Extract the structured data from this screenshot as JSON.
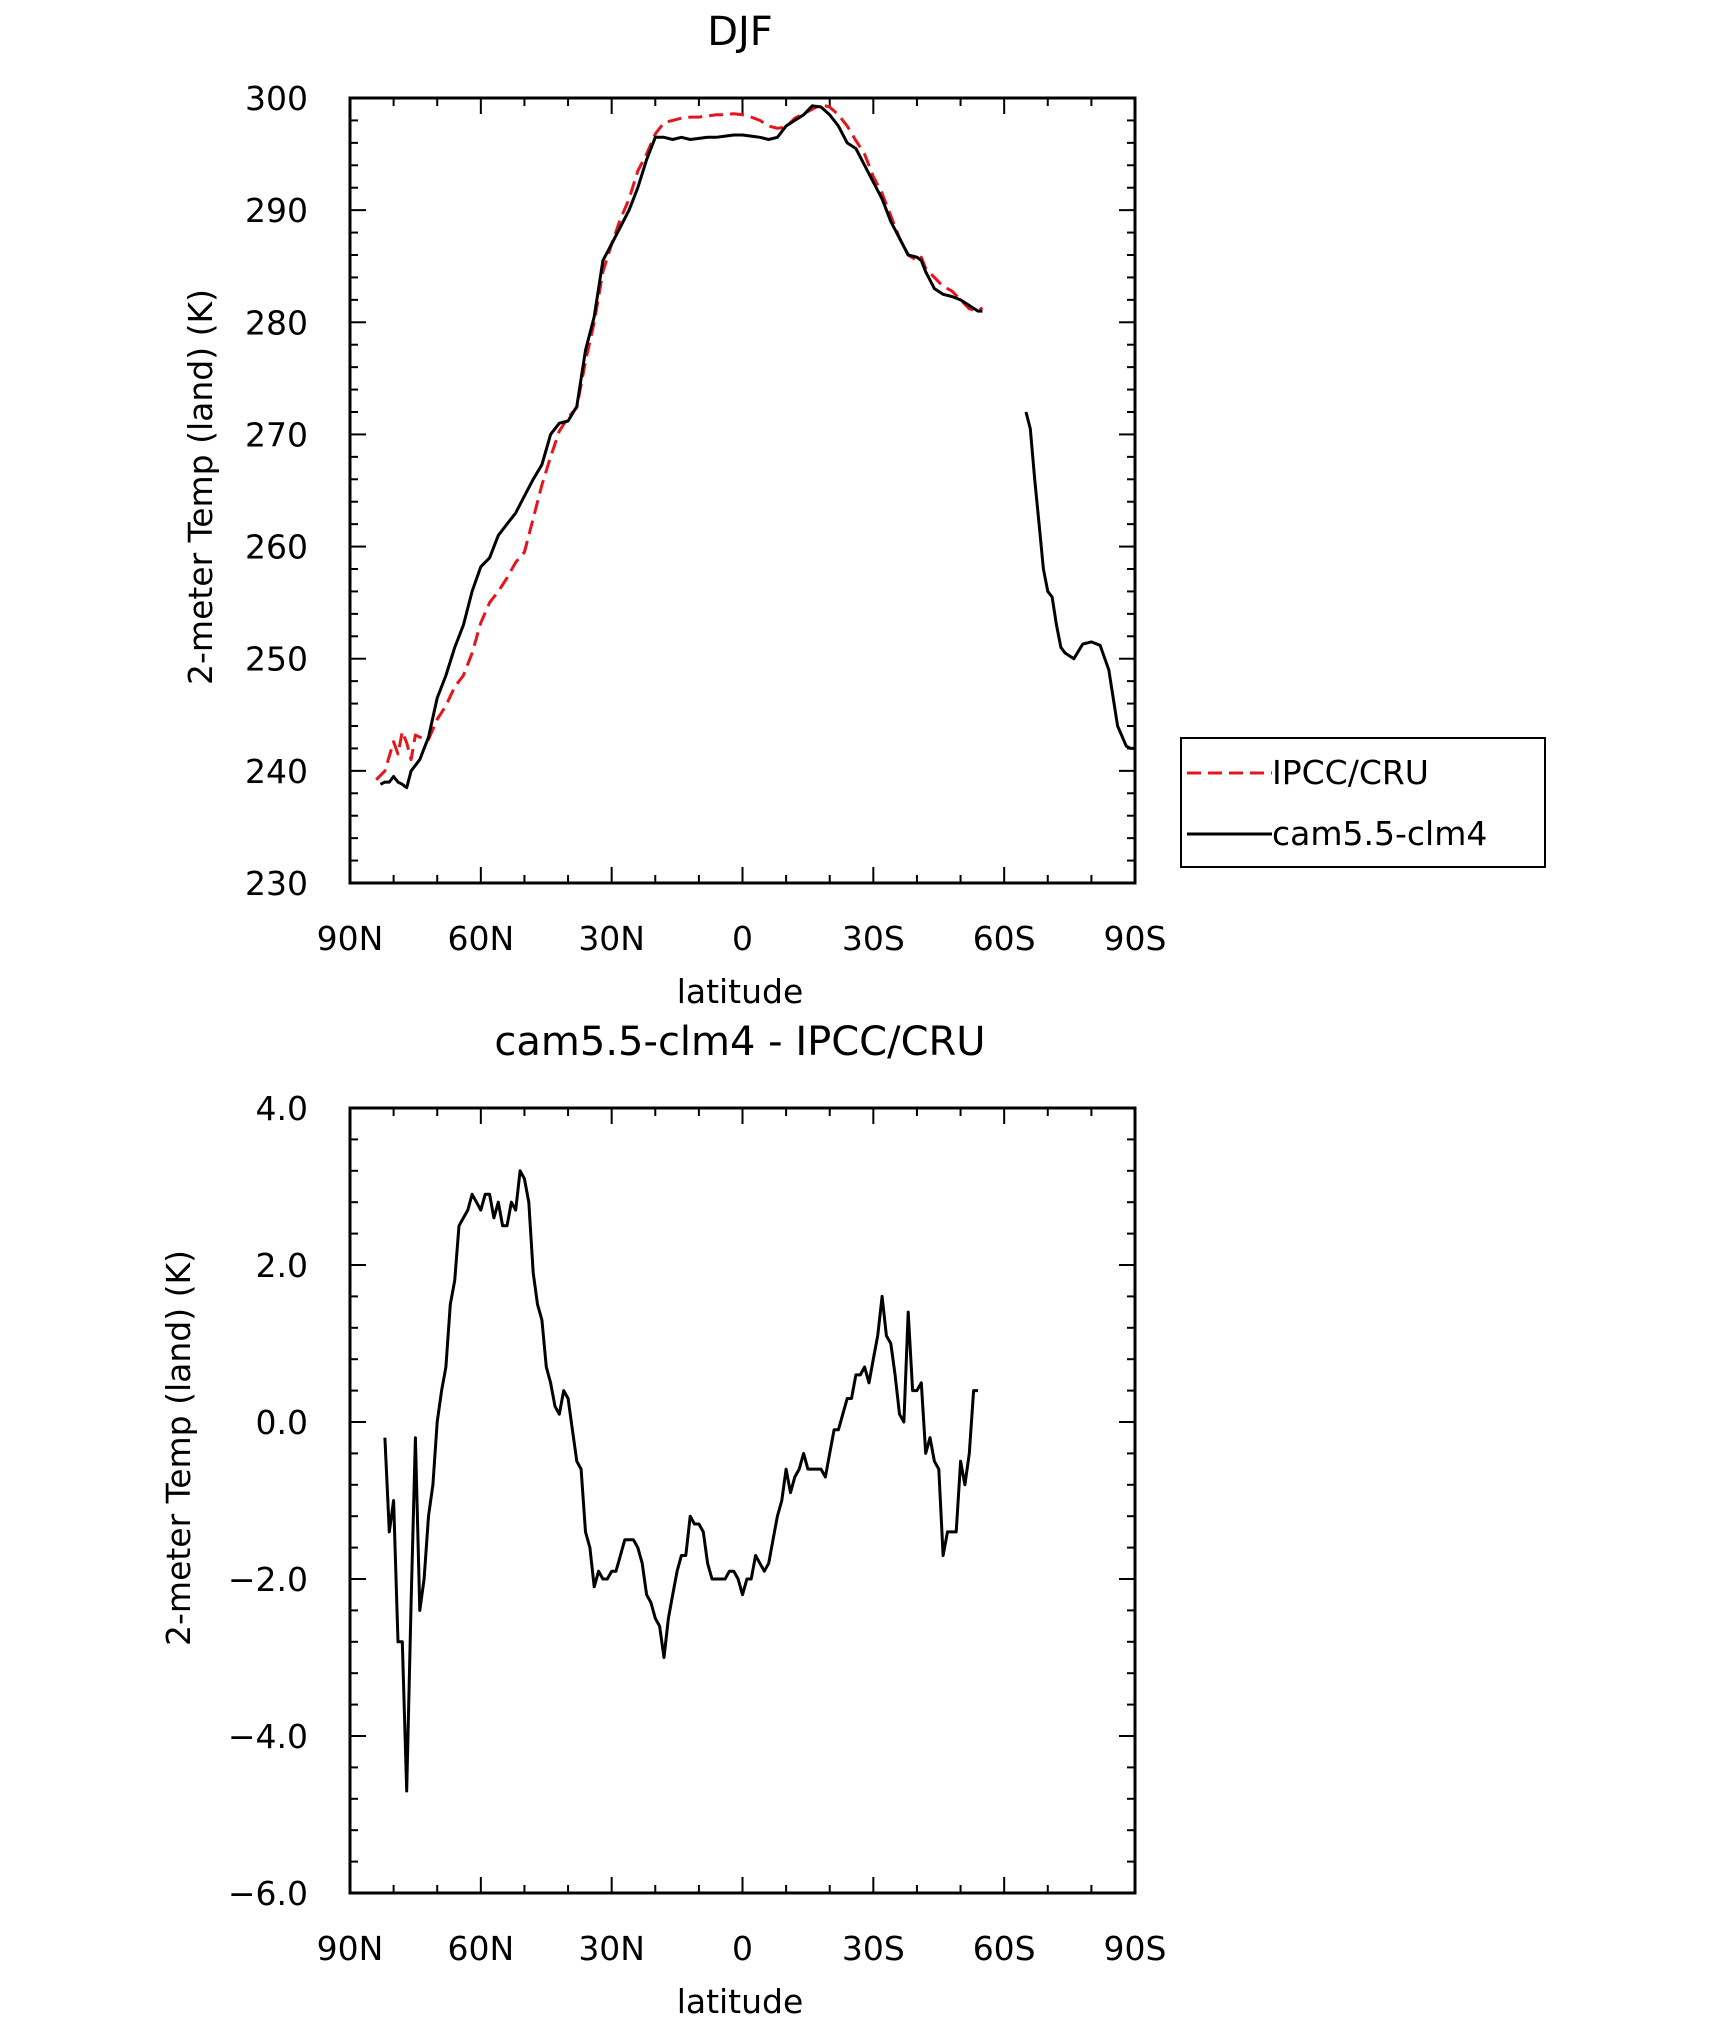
{
  "chart_data": [
    {
      "type": "line",
      "title": "DJF",
      "xlabel": "latitude",
      "ylabel": "2-meter Temp (land) (K)",
      "xlim": [
        90,
        -90
      ],
      "ylim": [
        230,
        300
      ],
      "x_ticks": [
        90,
        60,
        30,
        0,
        -30,
        -60,
        -90
      ],
      "x_tick_labels": [
        "90N",
        "60N",
        "30N",
        "0",
        "30S",
        "60S",
        "90S"
      ],
      "y_ticks": [
        230,
        240,
        250,
        260,
        270,
        280,
        290,
        300
      ],
      "y_tick_labels": [
        "230",
        "240",
        "250",
        "260",
        "270",
        "280",
        "290",
        "300"
      ],
      "legend_position": "right",
      "series": [
        {
          "name": "IPCC/CRU",
          "color": "#e8141b",
          "dash": "dashed",
          "x": [
            84,
            82,
            80,
            79,
            78,
            77,
            76,
            75,
            74,
            72,
            70,
            68,
            66,
            64,
            62,
            60,
            58,
            56,
            54,
            52,
            50,
            48,
            46,
            44,
            42,
            40,
            38,
            36,
            34,
            32,
            30,
            28,
            26,
            24,
            22,
            20,
            18,
            16,
            14,
            12,
            10,
            8,
            6,
            4,
            2,
            0,
            -2,
            -4,
            -6,
            -8,
            -10,
            -12,
            -14,
            -16,
            -18,
            -20,
            -22,
            -24,
            -26,
            -28,
            -30,
            -32,
            -34,
            -36,
            -38,
            -40,
            -41,
            -42,
            -44,
            -46,
            -48,
            -50,
            -52,
            -54,
            -55
          ],
          "y": [
            239.2,
            240.0,
            242.6,
            241.5,
            243.5,
            242.5,
            241.0,
            243.2,
            243.0,
            242.8,
            244.6,
            245.8,
            247.5,
            248.5,
            250.5,
            253.2,
            255.0,
            256.0,
            257.2,
            258.6,
            259.5,
            262.5,
            265.5,
            268.0,
            270.3,
            271.5,
            272.4,
            276.5,
            280.0,
            284.5,
            287.0,
            289.2,
            291.0,
            293.5,
            295.0,
            296.8,
            297.8,
            298.0,
            298.2,
            298.3,
            298.3,
            298.4,
            298.5,
            298.5,
            298.6,
            298.5,
            298.3,
            298.0,
            297.5,
            297.3,
            297.4,
            298.2,
            298.6,
            299.0,
            299.4,
            299.2,
            298.5,
            297.5,
            296.2,
            295.0,
            293.0,
            291.5,
            289.5,
            287.5,
            286.0,
            285.5,
            285.8,
            284.8,
            284.0,
            283.2,
            282.8,
            282.0,
            281.2,
            281.0,
            281.3
          ]
        },
        {
          "name": "cam5.5-clm4",
          "color": "#000000",
          "dash": "solid",
          "x": [
            83,
            82,
            81,
            80,
            79,
            78,
            77,
            76,
            74,
            72,
            70,
            68,
            66,
            64,
            62,
            60,
            58,
            56,
            54,
            52,
            50,
            48,
            46,
            44,
            42,
            40,
            38,
            36,
            34,
            32,
            30,
            28,
            26,
            24,
            22,
            20,
            18,
            16,
            14,
            12,
            10,
            8,
            6,
            4,
            2,
            0,
            -2,
            -4,
            -6,
            -8,
            -10,
            -12,
            -14,
            -16,
            -18,
            -20,
            -22,
            -24,
            -26,
            -28,
            -30,
            -32,
            -34,
            -36,
            -38,
            -40,
            -41,
            -42,
            -44,
            -46,
            -48,
            -50,
            -52,
            -54,
            -55,
            null,
            -65,
            -66,
            -67,
            -68,
            -69,
            -70,
            -71,
            -72,
            -73,
            -74,
            -76,
            -78,
            -80,
            -82,
            -84,
            -86,
            -88,
            -89,
            -90
          ],
          "y": [
            238.8,
            239.0,
            239.0,
            239.5,
            239.0,
            238.8,
            238.5,
            240.0,
            241.0,
            243.0,
            246.5,
            248.5,
            251.0,
            253.0,
            256.0,
            258.2,
            259.0,
            261.0,
            262.0,
            263.0,
            264.5,
            266.0,
            267.3,
            270.0,
            271.0,
            271.2,
            272.5,
            277.5,
            280.5,
            285.5,
            287.0,
            288.5,
            290.0,
            292.0,
            294.5,
            296.5,
            296.5,
            296.3,
            296.5,
            296.3,
            296.4,
            296.5,
            296.5,
            296.6,
            296.7,
            296.7,
            296.6,
            296.5,
            296.3,
            296.5,
            297.5,
            298.0,
            298.5,
            299.3,
            299.2,
            298.5,
            297.5,
            296.0,
            295.5,
            294.0,
            292.5,
            291.0,
            289.0,
            287.5,
            286.0,
            285.8,
            285.5,
            284.5,
            283.0,
            282.5,
            282.3,
            282.0,
            281.5,
            281.0,
            281.0,
            null,
            272.0,
            270.5,
            266.0,
            262.0,
            258.0,
            256.0,
            255.5,
            253.0,
            251.0,
            250.5,
            250.0,
            251.3,
            251.5,
            251.2,
            249.0,
            244.0,
            242.2,
            242.0,
            242.0
          ]
        }
      ]
    },
    {
      "type": "line",
      "title": "cam5.5-clm4 - IPCC/CRU",
      "xlabel": "latitude",
      "ylabel": "2-meter Temp (land) (K)",
      "xlim": [
        90,
        -90
      ],
      "ylim": [
        -6.0,
        4.0
      ],
      "x_ticks": [
        90,
        60,
        30,
        0,
        -30,
        -60,
        -90
      ],
      "x_tick_labels": [
        "90N",
        "60N",
        "30N",
        "0",
        "30S",
        "60S",
        "90S"
      ],
      "y_ticks": [
        -6.0,
        -4.0,
        -2.0,
        0.0,
        2.0,
        4.0
      ],
      "y_tick_labels": [
        "-6.0",
        "-4.0",
        "-2.0",
        "0.0",
        "2.0",
        "4.0"
      ],
      "series": [
        {
          "name": "cam5.5-clm4",
          "color": "#000000",
          "dash": "solid",
          "x": [
            82,
            81,
            80,
            79,
            78,
            77,
            76,
            75,
            74,
            73,
            72,
            71,
            70,
            69,
            68,
            67,
            66,
            65,
            64,
            63,
            62,
            61,
            60,
            59,
            58,
            57,
            56,
            55,
            54,
            53,
            52,
            51,
            50,
            49,
            48,
            47,
            46,
            45,
            44,
            43,
            42,
            41,
            40,
            39,
            38,
            37,
            36,
            35,
            34,
            33,
            32,
            31,
            30,
            29,
            28,
            27,
            26,
            25,
            24,
            23,
            22,
            21,
            20,
            19,
            18,
            17,
            16,
            15,
            14,
            13,
            12,
            11,
            10,
            9,
            8,
            7,
            6,
            5,
            4,
            3,
            2,
            1,
            0,
            -1,
            -2,
            -3,
            -4,
            -5,
            -6,
            -7,
            -8,
            -9,
            -10,
            -11,
            -12,
            -13,
            -14,
            -15,
            -16,
            -17,
            -18,
            -19,
            -20,
            -21,
            -22,
            -23,
            -24,
            -25,
            -26,
            -27,
            -28,
            -29,
            -30,
            -31,
            -32,
            -33,
            -34,
            -35,
            -36,
            -37,
            -38,
            -39,
            -40,
            -41,
            -42,
            -43,
            -44,
            -45,
            -46,
            -47,
            -48,
            -49,
            -50,
            -51,
            -52,
            -53,
            -54
          ],
          "y": [
            -0.2,
            -1.4,
            -1.0,
            -2.8,
            -2.8,
            -4.7,
            -2.3,
            -0.2,
            -2.4,
            -2.0,
            -1.2,
            -0.8,
            0.0,
            0.4,
            0.7,
            1.5,
            1.8,
            2.5,
            2.6,
            2.7,
            2.9,
            2.8,
            2.7,
            2.9,
            2.9,
            2.6,
            2.8,
            2.5,
            2.5,
            2.8,
            2.7,
            3.2,
            3.1,
            2.8,
            1.9,
            1.5,
            1.3,
            0.7,
            0.5,
            0.2,
            0.1,
            0.4,
            0.3,
            -0.1,
            -0.5,
            -0.6,
            -1.4,
            -1.6,
            -2.1,
            -1.9,
            -2.0,
            -2.0,
            -1.9,
            -1.9,
            -1.7,
            -1.5,
            -1.5,
            -1.5,
            -1.6,
            -1.8,
            -2.2,
            -2.3,
            -2.5,
            -2.6,
            -3.0,
            -2.5,
            -2.2,
            -1.9,
            -1.7,
            -1.7,
            -1.2,
            -1.3,
            -1.3,
            -1.4,
            -1.8,
            -2.0,
            -2.0,
            -2.0,
            -2.0,
            -1.9,
            -1.9,
            -2.0,
            -2.2,
            -2.0,
            -2.0,
            -1.7,
            -1.8,
            -1.9,
            -1.8,
            -1.5,
            -1.2,
            -1.0,
            -0.6,
            -0.9,
            -0.7,
            -0.6,
            -0.4,
            -0.6,
            -0.6,
            -0.6,
            -0.6,
            -0.7,
            -0.4,
            -0.1,
            -0.1,
            0.1,
            0.3,
            0.3,
            0.6,
            0.6,
            0.7,
            0.5,
            0.8,
            1.1,
            1.6,
            1.1,
            1.0,
            0.6,
            0.1,
            0.0,
            1.4,
            0.4,
            0.4,
            0.5,
            -0.4,
            -0.2,
            -0.5,
            -0.6,
            -1.7,
            -1.4,
            -1.4,
            -1.4,
            -0.5,
            -0.8,
            -0.4,
            0.4,
            0.4
          ]
        }
      ]
    }
  ]
}
